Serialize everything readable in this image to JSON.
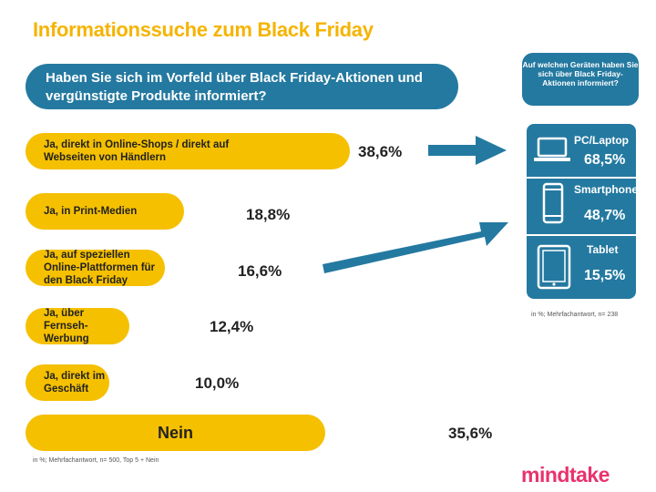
{
  "title": "Informationssuche zum Black Friday",
  "question": "Haben Sie sich im Vorfeld über Black Friday-Aktionen und vergünstigte Produkte informiert?",
  "chart_data": {
    "type": "bar",
    "orientation": "horizontal",
    "unit": "%",
    "categories": [
      "Ja, direkt in Online-Shops / direkt auf Webseiten von Händlern",
      "Ja, in Print-Medien",
      "Ja, auf speziellen Online-Plattformen für den Black Friday",
      "Ja, über Fernseh-Werbung",
      "Ja, direkt im Geschäft",
      "Nein"
    ],
    "values": [
      38.6,
      18.8,
      16.6,
      12.4,
      10.0,
      35.6
    ],
    "value_labels": [
      "38,6%",
      "18,8%",
      "16,6%",
      "12,4%",
      "10,0%",
      "35,6%"
    ]
  },
  "devices": {
    "question": "Auf welchen Geräten haben Sie sich über Black Friday-Aktionen informiert?",
    "items": [
      {
        "label": "PC/Laptop",
        "value": 68.5,
        "value_label": "68,5%",
        "icon": "laptop-icon"
      },
      {
        "label": "Smartphone",
        "value": 48.7,
        "value_label": "48,7%",
        "icon": "smartphone-icon"
      },
      {
        "label": "Tablet",
        "value": 15.5,
        "value_label": "15,5%",
        "icon": "tablet-icon"
      }
    ],
    "footnote": "in %; Mehrfachantwort, n= 238"
  },
  "footnote": "in %; Mehrfachantwort, n= 500, Top 5 + Nein",
  "logo": "mindtake",
  "colors": {
    "accent": "#F5C000",
    "title": "#F5B400",
    "blue": "#2479A0",
    "logo": "#E8336D"
  }
}
